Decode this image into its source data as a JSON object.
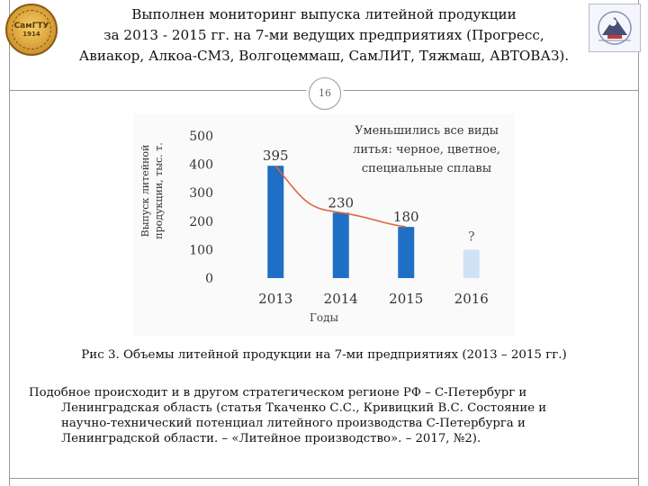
{
  "header": {
    "title_lines": [
      "Выполнен мониторинг выпуска литейной продукции",
      "за 2013 - 2015 гг. на 7-ми ведущих предприятиях (Прогресс,",
      "Авиакор, Алкоа-СМЗ, Волгоцеммаш, СамЛИТ, Тяжмаш, АВТОВАЗ)."
    ],
    "logo_left_text": "СамГТУ",
    "logo_left_year": "1914"
  },
  "page_number": "16",
  "chart_data": {
    "type": "bar",
    "categories": [
      "2013",
      "2014",
      "2015",
      "2016"
    ],
    "values": [
      395,
      230,
      180,
      null
    ],
    "data_labels": [
      "395",
      "230",
      "180",
      "?"
    ],
    "ylabel_lines": [
      "Выпуск литейной",
      "продукции, тыс. т."
    ],
    "xlabel": "Годы",
    "ylim": [
      0,
      500
    ],
    "yticks": [
      0,
      100,
      200,
      300,
      400,
      500
    ],
    "annotation_lines": [
      "Уменьшились все виды",
      "литья: черное, цветное,",
      "специальные сплавы"
    ],
    "trend": "decreasing curve",
    "colors": {
      "bar": "#1f6fc5",
      "bar_placeholder": "#cfe3f5",
      "trend": "#e0633a"
    },
    "grid": false
  },
  "caption": "Рис 3. Объемы литейной продукции на 7-ми предприятиях (2013 – 2015 гг.)",
  "body_lines": [
    "Подобное происходит и в другом стратегическом регионе РФ – С-Петербург и",
    "Ленинградская область (статья Ткаченко С.С., Кривицкий В.С. Состояние и",
    "научно-технический потенциал литейного производства С-Петербурга и",
    "Ленинградской области. – «Литейное производство». – 2017, №2)."
  ]
}
